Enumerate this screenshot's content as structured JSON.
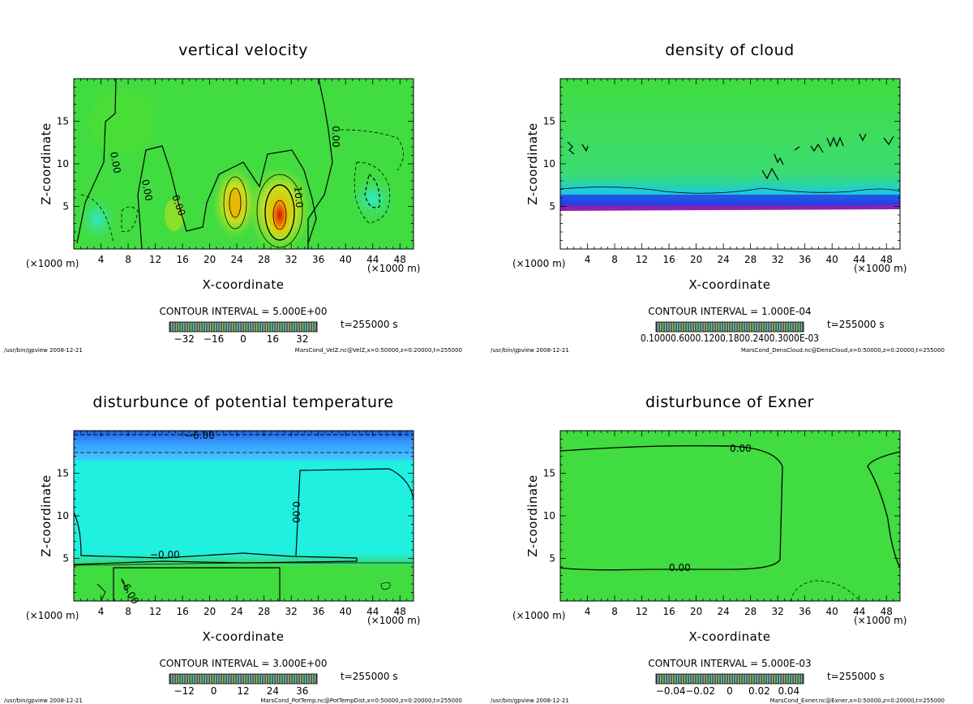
{
  "chart_data": [
    {
      "type": "heatmap",
      "id": "velz",
      "title": "vertical velocity",
      "xlabel": "X-coordinate",
      "ylabel": "Z-coordinate",
      "xunit_left": "(×1000 m)",
      "xunit_right": "(×1000 m)",
      "xlim": [
        0,
        50
      ],
      "ylim": [
        0,
        20
      ],
      "x_ticks": [
        "4",
        "8",
        "12",
        "16",
        "20",
        "24",
        "28",
        "32",
        "36",
        "40",
        "44",
        "48"
      ],
      "y_ticks": [
        "5",
        "10",
        "15"
      ],
      "contour_interval": "CONTOUR INTERVAL = 5.000E+00",
      "time": "t=255000 s",
      "colorbar_ticks": [
        "−32",
        "−16",
        "0",
        "16",
        "32"
      ],
      "contour_labels": [
        "0.00",
        "0.00",
        "0.00",
        "0.00",
        "10.0"
      ],
      "footer_left": "/usr/bin/gpview  2008-12-21",
      "footer_right": "MarsCond_VelZ.nc@VelZ,x=0:50000,z=0:20000,t=255000",
      "colors": {
        "background": "#3fdc3c",
        "positive": "#e8c800",
        "peak": "#e04000",
        "negative": "#20d8c0"
      }
    },
    {
      "type": "heatmap",
      "id": "denscloud",
      "title": "density of cloud",
      "xlabel": "X-coordinate",
      "ylabel": "Z-coordinate",
      "xunit_left": "(×1000 m)",
      "xunit_right": "(×1000 m)",
      "xlim": [
        0,
        50
      ],
      "ylim": [
        0,
        20
      ],
      "x_ticks": [
        "4",
        "8",
        "12",
        "16",
        "20",
        "24",
        "28",
        "32",
        "36",
        "40",
        "44",
        "48"
      ],
      "y_ticks": [
        "5",
        "10",
        "15"
      ],
      "contour_interval": "CONTOUR INTERVAL = 1.000E-04",
      "time": "t=255000 s",
      "colorbar_labels_overlapped": "0.10000.6000.1200.1800.2400.3000E-03",
      "footer_left": "/usr/bin/gpview  2008-12-21",
      "footer_right": "MarsCond_DensCloud.nc@DensCloud,x=0:50000,z=0:20000,t=255000",
      "colors": {
        "background": "#3fdc3c",
        "low": "#10c8e0",
        "base": "#2080ff",
        "dense": "#8020c0"
      }
    },
    {
      "type": "heatmap",
      "id": "pottemp",
      "title": "disturbunce of potential temperature",
      "xlabel": "X-coordinate",
      "ylabel": "Z-coordinate",
      "xunit_left": "(×1000 m)",
      "xunit_right": "(×1000 m)",
      "xlim": [
        0,
        50
      ],
      "ylim": [
        0,
        20
      ],
      "x_ticks": [
        "4",
        "8",
        "12",
        "16",
        "20",
        "24",
        "28",
        "32",
        "36",
        "40",
        "44",
        "48"
      ],
      "y_ticks": [
        "5",
        "10",
        "15"
      ],
      "contour_interval": "CONTOUR INTERVAL = 3.000E+00",
      "time": "t=255000 s",
      "colorbar_ticks": [
        "−12",
        "0",
        "12",
        "24",
        "36"
      ],
      "contour_labels": [
        "−6.00",
        "0.00",
        "−0.00",
        "−6.00"
      ],
      "footer_left": "/usr/bin/gpview  2008-12-21",
      "footer_right": "MarsCond_PotTemp.nc@PotTempDist,x=0:50000,z=0:20000,t=255000",
      "colors": {
        "upper": "#40b8ff",
        "mid": "#20f0e0",
        "lower": "#3fdc3c"
      }
    },
    {
      "type": "heatmap",
      "id": "exner",
      "title": "disturbunce of Exner",
      "xlabel": "X-coordinate",
      "ylabel": "Z-coordinate",
      "xunit_left": "(×1000 m)",
      "xunit_right": "(×1000 m)",
      "xlim": [
        0,
        50
      ],
      "ylim": [
        0,
        20
      ],
      "x_ticks": [
        "4",
        "8",
        "12",
        "16",
        "20",
        "24",
        "28",
        "32",
        "36",
        "40",
        "44",
        "48"
      ],
      "y_ticks": [
        "5",
        "10",
        "15"
      ],
      "contour_interval": "CONTOUR INTERVAL = 5.000E-03",
      "time": "t=255000 s",
      "colorbar_ticks": [
        "−0.04",
        "−0.02",
        "0",
        "0.02",
        "0.04"
      ],
      "contour_labels": [
        "0.00",
        "0.00"
      ],
      "footer_left": "/usr/bin/gpview  2008-12-21",
      "footer_right": "MarsCond_Exner.nc@Exner,x=0:50000,z=0:20000,t=255000",
      "colors": {
        "background": "#3fdc3c"
      }
    }
  ]
}
